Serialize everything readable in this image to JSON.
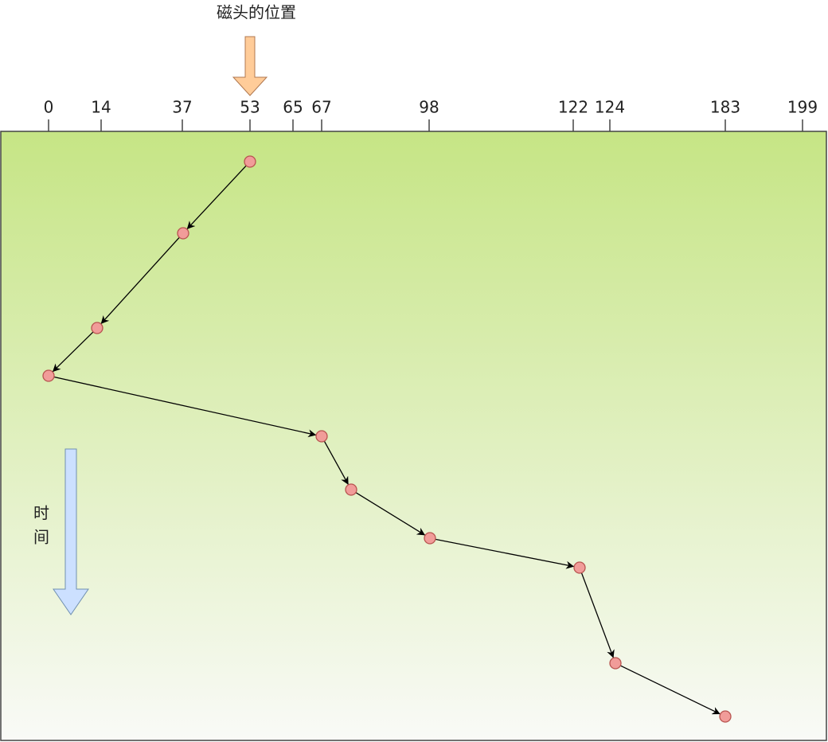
{
  "head_label": "磁头的位置",
  "ticks": [
    "0",
    "14",
    "37",
    "53",
    "65",
    "67",
    "98",
    "122",
    "124",
    "183",
    "199"
  ],
  "time_label": [
    "时",
    "间"
  ]
}
